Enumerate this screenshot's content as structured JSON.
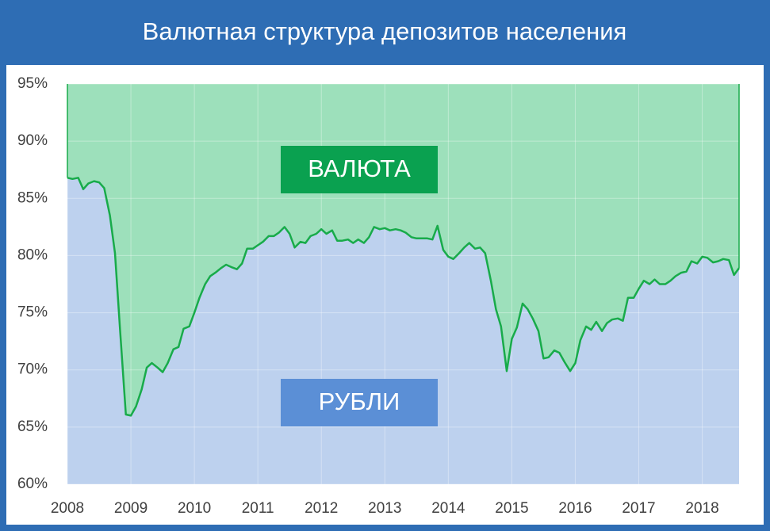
{
  "chart_data": {
    "type": "area",
    "title": "Валютная структура депозитов населения",
    "x": [
      2008.0,
      2008.08,
      2008.17,
      2008.25,
      2008.33,
      2008.42,
      2008.5,
      2008.58,
      2008.67,
      2008.75,
      2008.83,
      2008.92,
      2009.0,
      2009.08,
      2009.17,
      2009.25,
      2009.33,
      2009.42,
      2009.5,
      2009.58,
      2009.67,
      2009.75,
      2009.83,
      2009.92,
      2010.0,
      2010.08,
      2010.17,
      2010.25,
      2010.33,
      2010.42,
      2010.5,
      2010.58,
      2010.67,
      2010.75,
      2010.83,
      2010.92,
      2011.0,
      2011.08,
      2011.17,
      2011.25,
      2011.33,
      2011.42,
      2011.5,
      2011.58,
      2011.67,
      2011.75,
      2011.83,
      2011.92,
      2012.0,
      2012.08,
      2012.17,
      2012.25,
      2012.33,
      2012.42,
      2012.5,
      2012.58,
      2012.67,
      2012.75,
      2012.83,
      2012.92,
      2013.0,
      2013.08,
      2013.17,
      2013.25,
      2013.33,
      2013.42,
      2013.5,
      2013.58,
      2013.67,
      2013.75,
      2013.83,
      2013.92,
      2014.0,
      2014.08,
      2014.17,
      2014.25,
      2014.33,
      2014.42,
      2014.5,
      2014.58,
      2014.67,
      2014.75,
      2014.83,
      2014.92,
      2015.0,
      2015.08,
      2015.17,
      2015.25,
      2015.33,
      2015.42,
      2015.5,
      2015.58,
      2015.67,
      2015.75,
      2015.83,
      2015.92,
      2016.0,
      2016.08,
      2016.17,
      2016.25,
      2016.33,
      2016.42,
      2016.5,
      2016.58,
      2016.67,
      2016.75,
      2016.83,
      2016.92,
      2017.0,
      2017.08,
      2017.17,
      2017.25,
      2017.33,
      2017.42,
      2017.5,
      2017.58,
      2017.67,
      2017.75,
      2017.83,
      2017.92,
      2018.0,
      2018.08,
      2018.17,
      2018.25,
      2018.33,
      2018.42,
      2018.5,
      2018.58
    ],
    "series": [
      {
        "name": "РУБЛИ",
        "color": "#bdd1ee",
        "line_color": "#18ab4a",
        "label_color": "#5b8fd6",
        "values": [
          86.8,
          86.7,
          86.8,
          85.8,
          86.3,
          86.5,
          86.4,
          85.9,
          83.5,
          80.2,
          73.5,
          66.1,
          66.0,
          66.8,
          68.3,
          70.2,
          70.6,
          70.2,
          69.8,
          70.6,
          71.8,
          72.0,
          73.6,
          73.8,
          75.0,
          76.3,
          77.5,
          78.2,
          78.5,
          78.9,
          79.2,
          79.0,
          78.8,
          79.3,
          80.6,
          80.6,
          80.9,
          81.2,
          81.7,
          81.7,
          82.0,
          82.5,
          81.9,
          80.7,
          81.2,
          81.1,
          81.7,
          81.9,
          82.3,
          81.9,
          82.2,
          81.3,
          81.3,
          81.4,
          81.1,
          81.4,
          81.1,
          81.6,
          82.5,
          82.3,
          82.4,
          82.2,
          82.3,
          82.2,
          82.0,
          81.6,
          81.5,
          81.5,
          81.5,
          81.4,
          82.6,
          80.5,
          79.9,
          79.7,
          80.2,
          80.7,
          81.1,
          80.6,
          80.7,
          80.2,
          77.8,
          75.3,
          73.8,
          69.9,
          72.7,
          73.7,
          75.8,
          75.3,
          74.5,
          73.4,
          71.0,
          71.1,
          71.7,
          71.5,
          70.7,
          69.9,
          70.6,
          72.6,
          73.8,
          73.5,
          74.2,
          73.4,
          74.1,
          74.4,
          74.5,
          74.3,
          76.3,
          76.3,
          77.1,
          77.8,
          77.5,
          77.9,
          77.5,
          77.5,
          77.8,
          78.2,
          78.5,
          78.6,
          79.5,
          79.3,
          79.9,
          79.8,
          79.4,
          79.5,
          79.7,
          79.6,
          78.3,
          78.9
        ]
      }
    ],
    "top_area": {
      "name": "ВАЛЮТА",
      "color": "#9de0bb",
      "label_color": "#0aa150"
    },
    "xlim": [
      2008,
      2018.58
    ],
    "ylim": [
      60,
      95
    ],
    "xticks": [
      2008,
      2009,
      2010,
      2011,
      2012,
      2013,
      2014,
      2015,
      2016,
      2017,
      2018
    ],
    "yticks": [
      {
        "value": 60,
        "label": "60%"
      },
      {
        "value": 65,
        "label": "65%"
      },
      {
        "value": 70,
        "label": "70%"
      },
      {
        "value": 75,
        "label": "75%"
      },
      {
        "value": 80,
        "label": "80%"
      },
      {
        "value": 85,
        "label": "85%"
      },
      {
        "value": 90,
        "label": "90%"
      },
      {
        "value": 95,
        "label": "95%"
      }
    ],
    "grid": true
  }
}
